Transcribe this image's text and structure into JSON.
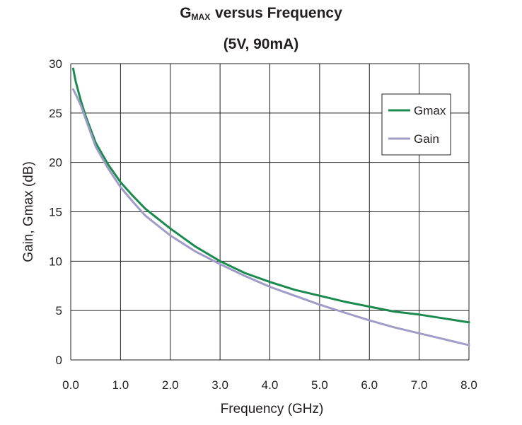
{
  "chart_data": {
    "type": "line",
    "title_main": "G",
    "title_sub": "MAX",
    "title_rest": " versus Frequency",
    "subtitle": "(5V, 90mA)",
    "xlabel": "Frequency (GHz)",
    "ylabel": "Gain, Gmax (dB)",
    "xlim": [
      0,
      8
    ],
    "ylim": [
      0,
      30
    ],
    "x_ticks": [
      "0.0",
      "1.0",
      "2.0",
      "3.0",
      "4.0",
      "5.0",
      "6.0",
      "7.0",
      "8.0"
    ],
    "y_ticks": [
      "0",
      "5",
      "10",
      "15",
      "20",
      "25",
      "30"
    ],
    "grid": true,
    "legend_position": "top-right",
    "series": [
      {
        "name": "Gmax",
        "color": "#1a8a4e",
        "x": [
          0.05,
          0.1,
          0.2,
          0.3,
          0.5,
          0.75,
          1.0,
          1.25,
          1.5,
          2.0,
          2.5,
          3.0,
          3.5,
          4.0,
          4.5,
          5.0,
          5.5,
          6.0,
          6.5,
          7.0,
          7.5,
          8.0
        ],
        "y": [
          29.5,
          28.2,
          26.3,
          24.7,
          22.0,
          19.8,
          18.0,
          16.6,
          15.3,
          13.3,
          11.5,
          10.0,
          8.8,
          7.9,
          7.1,
          6.5,
          5.9,
          5.4,
          4.9,
          4.6,
          4.2,
          3.8
        ]
      },
      {
        "name": "Gain",
        "color": "#a09cc8",
        "x": [
          0.05,
          0.1,
          0.2,
          0.3,
          0.5,
          0.75,
          1.0,
          1.25,
          1.5,
          2.0,
          2.5,
          3.0,
          3.5,
          4.0,
          4.5,
          5.0,
          5.5,
          6.0,
          6.5,
          7.0,
          7.5,
          8.0
        ],
        "y": [
          27.4,
          26.9,
          25.8,
          24.4,
          21.6,
          19.4,
          17.5,
          16.0,
          14.6,
          12.6,
          11.0,
          9.7,
          8.5,
          7.4,
          6.5,
          5.6,
          4.8,
          4.0,
          3.3,
          2.7,
          2.1,
          1.5
        ]
      }
    ]
  }
}
